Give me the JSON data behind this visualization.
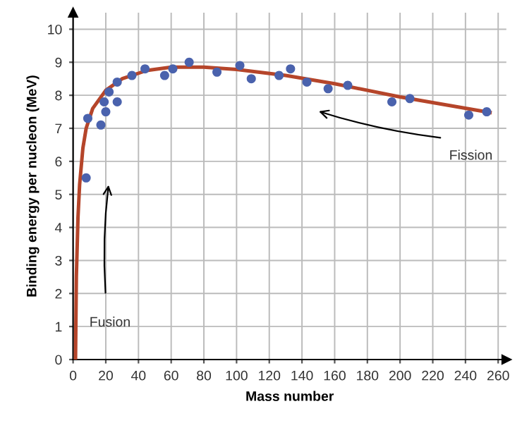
{
  "chart_data": {
    "type": "scatter",
    "xlabel": "Mass number",
    "ylabel": "Binding energy per nucleon (MeV)",
    "xlim": [
      0,
      265
    ],
    "ylim": [
      0,
      10.5
    ],
    "xticks": [
      0,
      20,
      40,
      60,
      80,
      100,
      120,
      140,
      160,
      180,
      200,
      220,
      240,
      260
    ],
    "yticks": [
      0,
      1,
      2,
      3,
      4,
      5,
      6,
      7,
      8,
      9,
      10
    ],
    "grid": true,
    "series": [
      {
        "marker": "circle",
        "color": "#4a62ad",
        "x": [
          8,
          9,
          17,
          19,
          20,
          22,
          27,
          27,
          36,
          44,
          56,
          61,
          71,
          88,
          102,
          109,
          126,
          133,
          143,
          156,
          168,
          195,
          206,
          242,
          253
        ],
        "values": [
          5.5,
          7.3,
          7.1,
          7.8,
          7.5,
          8.1,
          7.8,
          8.4,
          8.6,
          8.8,
          8.6,
          8.8,
          9.0,
          8.7,
          8.9,
          8.5,
          8.6,
          8.8,
          8.4,
          8.2,
          8.3,
          7.8,
          7.9,
          7.4,
          7.5
        ]
      },
      {
        "type": "line",
        "color": "#b5452a",
        "x": [
          1.5,
          2,
          3,
          4,
          6,
          8,
          12,
          20,
          30,
          45,
          60,
          80,
          100,
          130,
          160,
          200,
          255
        ],
        "values": [
          0,
          2.5,
          4.3,
          5.3,
          6.4,
          7.0,
          7.6,
          8.15,
          8.5,
          8.75,
          8.85,
          8.85,
          8.78,
          8.6,
          8.35,
          7.95,
          7.48
        ]
      }
    ],
    "annotations": [
      "Fusion",
      "Fission"
    ]
  }
}
